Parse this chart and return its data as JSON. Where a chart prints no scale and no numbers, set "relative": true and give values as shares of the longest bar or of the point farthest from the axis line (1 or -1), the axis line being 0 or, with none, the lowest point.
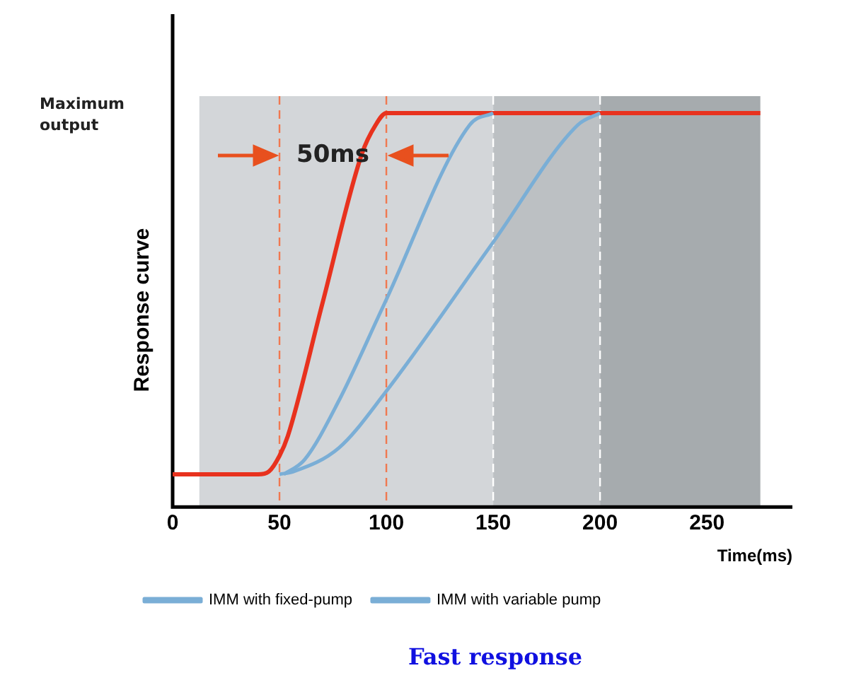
{
  "chart_data": {
    "type": "line",
    "title": "Fast response",
    "xlabel": "Time(ms)",
    "ylabel": "Response curve",
    "relative": true,
    "xlim": [
      0,
      290
    ],
    "xticks": [
      0,
      50,
      100,
      150,
      200,
      250
    ],
    "grid": false,
    "legend": "bottom left",
    "marker": "none",
    "line_style": "solid",
    "series": [
      {
        "name": "IMM with fixed-pump",
        "color": "#7aaed6",
        "x": [
          50,
          56.6,
          77.8,
          99,
          149.7,
          189.6,
          200
        ],
        "values": [
          0.083,
          0.09,
          0.15,
          0.287,
          0.67,
          0.97,
          1
        ]
      },
      {
        "name": "IMM with variable pump",
        "color": "#7aaed6",
        "x": [
          52,
          61.7,
          77.8,
          99,
          139,
          150
        ],
        "values": [
          0.083,
          0.12,
          0.27,
          0.515,
          0.97,
          1
        ]
      },
      {
        "color": "#e8321e",
        "x": [
          0,
          40,
          45,
          50,
          53.9,
          70,
          88.5,
          95,
          100,
          275
        ],
        "values": [
          0.083,
          0.083,
          0.09,
          0.13,
          0.18,
          0.515,
          0.896,
          0.97,
          1,
          1
        ]
      }
    ],
    "ref_lines": [
      {
        "axis": "x",
        "value": 50,
        "color": "#f07850",
        "line_style": "dashed"
      },
      {
        "axis": "x",
        "value": 100,
        "color": "#f07850",
        "line_style": "dashed"
      },
      {
        "axis": "x",
        "value": 150,
        "color": "#ffffff",
        "line_style": "dashed"
      },
      {
        "axis": "x",
        "value": 200,
        "color": "#ffffff",
        "line_style": "dashed"
      }
    ],
    "bands": [
      {
        "axis": "x",
        "from": 12.5,
        "to": 150,
        "color": "#d3d6d9"
      },
      {
        "axis": "x",
        "from": 150,
        "to": 200,
        "color": "#bcc0c3"
      },
      {
        "axis": "x",
        "from": 200,
        "to": 275,
        "color": "#a6abae"
      }
    ],
    "annotations": [
      "Maximum output",
      "50ms"
    ]
  }
}
